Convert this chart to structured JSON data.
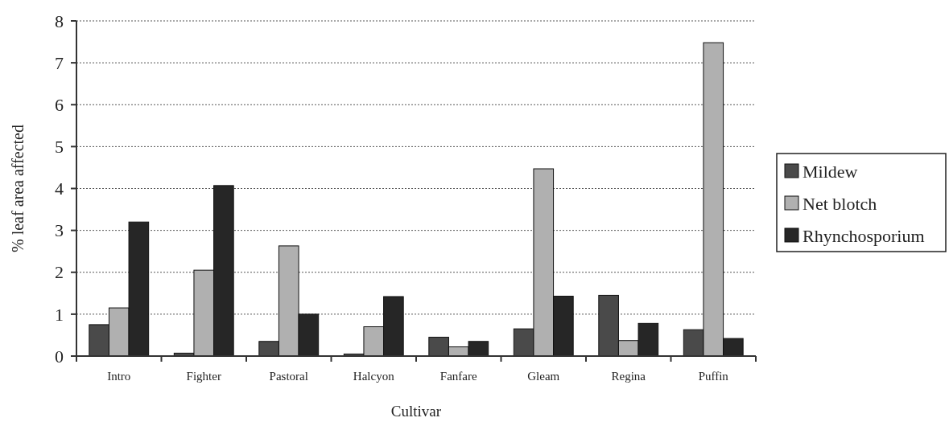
{
  "chart_data": {
    "type": "bar",
    "xlabel": "Cultivar",
    "ylabel": "% leaf area affected",
    "categories": [
      "Intro",
      "Fighter",
      "Pastoral",
      "Halcyon",
      "Fanfare",
      "Gleam",
      "Regina",
      "Puffin"
    ],
    "series": [
      {
        "name": "Mildew",
        "color": "#4a4a4a",
        "values": [
          0.75,
          0.07,
          0.35,
          0.05,
          0.45,
          0.65,
          1.45,
          0.63
        ]
      },
      {
        "name": "Net blotch",
        "color": "#b0b0b0",
        "values": [
          1.15,
          2.05,
          2.63,
          0.7,
          0.22,
          4.47,
          0.37,
          7.48
        ]
      },
      {
        "name": "Rhynchosporium",
        "color": "#262626",
        "values": [
          3.2,
          4.07,
          1.0,
          1.42,
          0.35,
          1.43,
          0.78,
          0.42
        ]
      }
    ],
    "ylim": [
      0,
      8
    ],
    "yticks": [
      0,
      1,
      2,
      3,
      4,
      5,
      6,
      7,
      8
    ],
    "grid": "y",
    "legend": "right"
  }
}
